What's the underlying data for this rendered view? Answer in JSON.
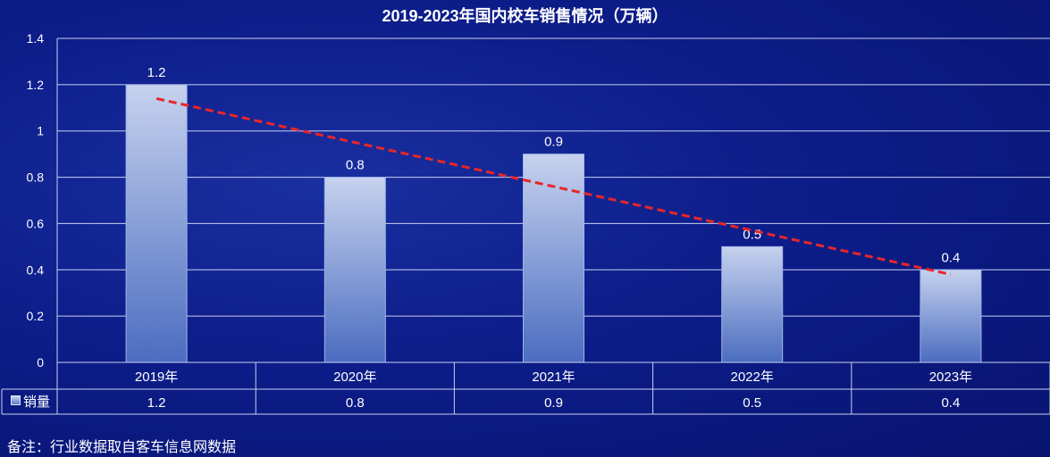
{
  "chart_data": {
    "type": "bar",
    "title": "2019-2023年国内校车销售情况（万辆）",
    "categories": [
      "2019年",
      "2020年",
      "2021年",
      "2022年",
      "2023年"
    ],
    "series": [
      {
        "name": "销量",
        "values": [
          1.2,
          0.8,
          0.9,
          0.5,
          0.4
        ]
      }
    ],
    "data_labels": [
      "1.2",
      "0.8",
      "0.9",
      "0.5",
      "0.4"
    ],
    "table_values": [
      "1.2",
      "0.8",
      "0.9",
      "0.5",
      "0.4"
    ],
    "trendline": {
      "type": "linear",
      "style": "dashed",
      "color": "#e8262a"
    },
    "ylim": [
      0,
      1.4
    ],
    "yticks": [
      "0",
      "0.2",
      "0.4",
      "0.6",
      "0.8",
      "1",
      "1.2",
      "1.4"
    ],
    "xlabel": "",
    "ylabel": "",
    "grid": true,
    "data_table": true
  },
  "legend_label": "销量",
  "footnote": "备注：行业数据取自客车信息网数据",
  "colors": {
    "bar_top": "#c6d2ee",
    "bar_bottom": "#4b6cc0",
    "grid": "#c8d0f0",
    "trend": "#e8262a"
  }
}
